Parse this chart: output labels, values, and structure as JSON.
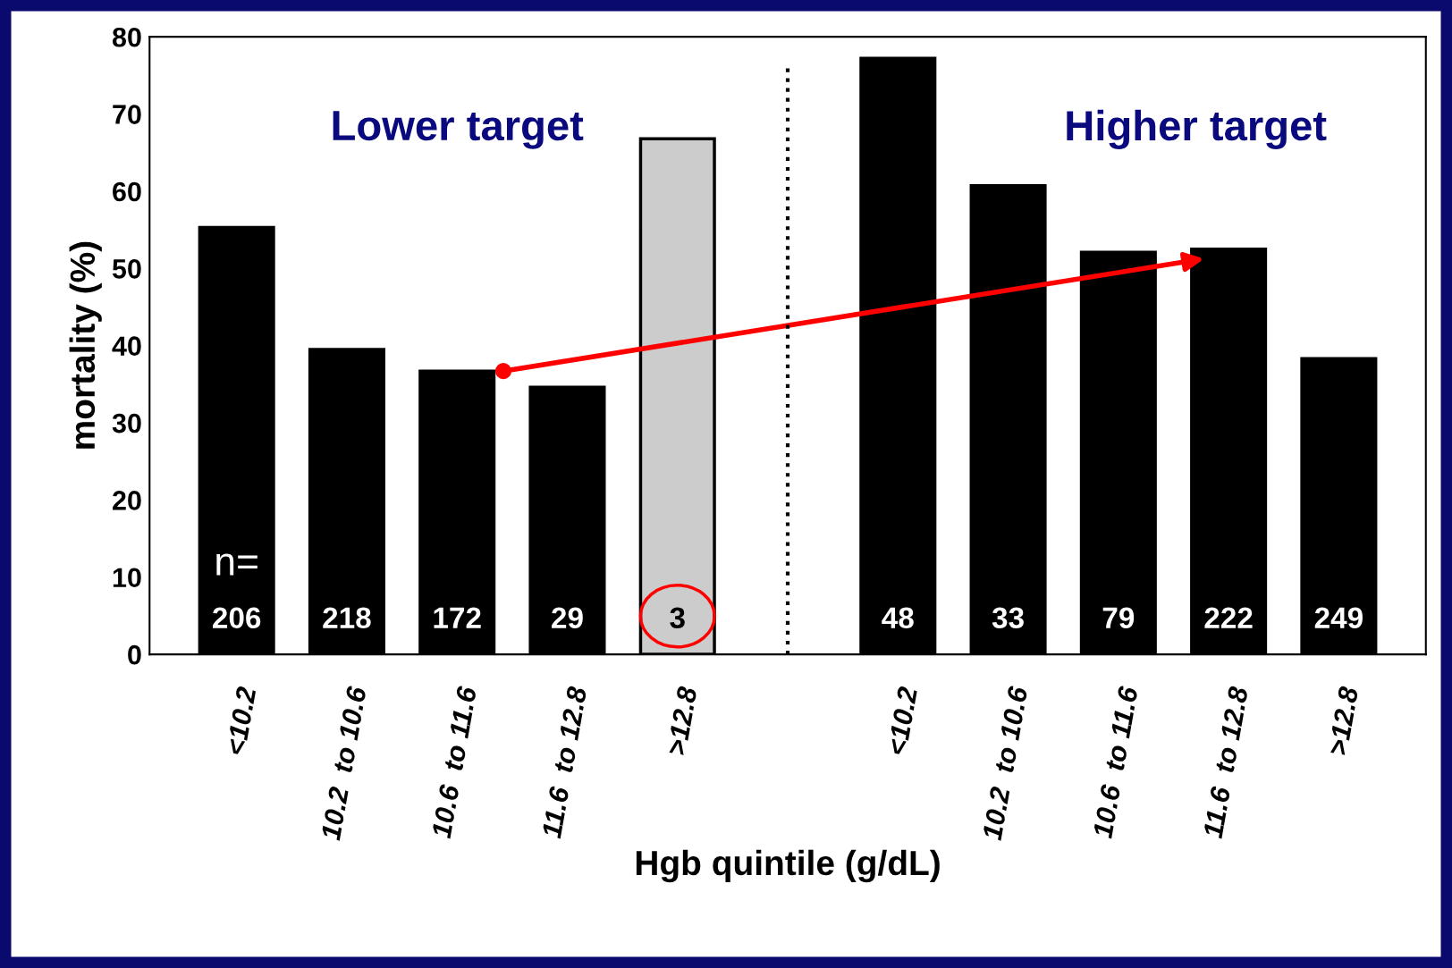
{
  "chart_data": {
    "type": "bar",
    "xlabel": "Hgb quintile (g/dL)",
    "ylabel": "mortality (%)",
    "categories": [
      "<10.2",
      "10.2  to 10.6",
      "10.6  to 11.6",
      "11.6  to 12.8",
      ">12.8",
      null,
      "<10.2",
      "10.2  to 10.6",
      "10.6  to 11.6",
      "11.6  to 12.8",
      ">12.8"
    ],
    "values": [
      55.3,
      39.5,
      36.7,
      34.6,
      66.8,
      null,
      77.2,
      60.7,
      52.1,
      52.5,
      38.3
    ],
    "colors": [
      "#000000",
      "#000000",
      "#000000",
      "#000000",
      "#cccccc",
      null,
      "#000000",
      "#000000",
      "#000000",
      "#000000",
      "#000000"
    ],
    "ylim": [
      0,
      80
    ],
    "yticks": [
      0,
      10,
      20,
      30,
      40,
      50,
      60,
      70,
      80
    ],
    "annotations": [
      "Lower target",
      "Higher target",
      "n=",
      "206",
      "218",
      "172",
      "29",
      "3",
      "48",
      "33",
      "79",
      "222",
      "249"
    ]
  }
}
